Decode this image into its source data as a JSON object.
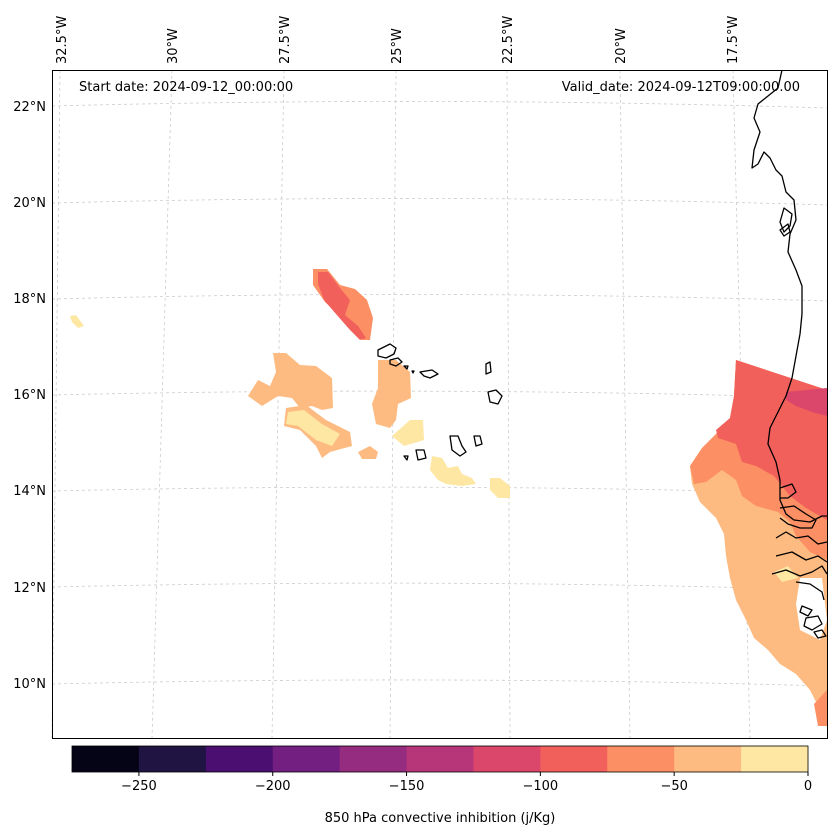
{
  "header": {
    "start_date": "Start date: 2024-09-12_00:00:00",
    "valid_date": "Valid_date: 2024-09-12T09:00:00.00"
  },
  "axes": {
    "longitude_labels": [
      "32.5°W",
      "30°W",
      "27.5°W",
      "25°W",
      "22.5°W",
      "20°W",
      "17.5°W"
    ],
    "latitude_labels": [
      "22°N",
      "20°N",
      "18°N",
      "16°N",
      "14°N",
      "12°N",
      "10°N"
    ]
  },
  "colorbar": {
    "label": "850 hPa convective inhibition (j/Kg)",
    "ticks": [
      "−250",
      "−200",
      "−150",
      "−100",
      "−50",
      "0"
    ],
    "levels": [
      -275,
      -250,
      -225,
      -200,
      -175,
      -150,
      -125,
      -100,
      -75,
      -50,
      -25,
      0
    ],
    "colors": [
      "#050417",
      "#1f1442",
      "#4b0f72",
      "#721f81",
      "#952c80",
      "#b63679",
      "#db476a",
      "#f2605c",
      "#fc8f63",
      "#febb81",
      "#fde7a3"
    ]
  },
  "colors": {
    "gridline": "#cccccc",
    "coastline": "#000000"
  }
}
